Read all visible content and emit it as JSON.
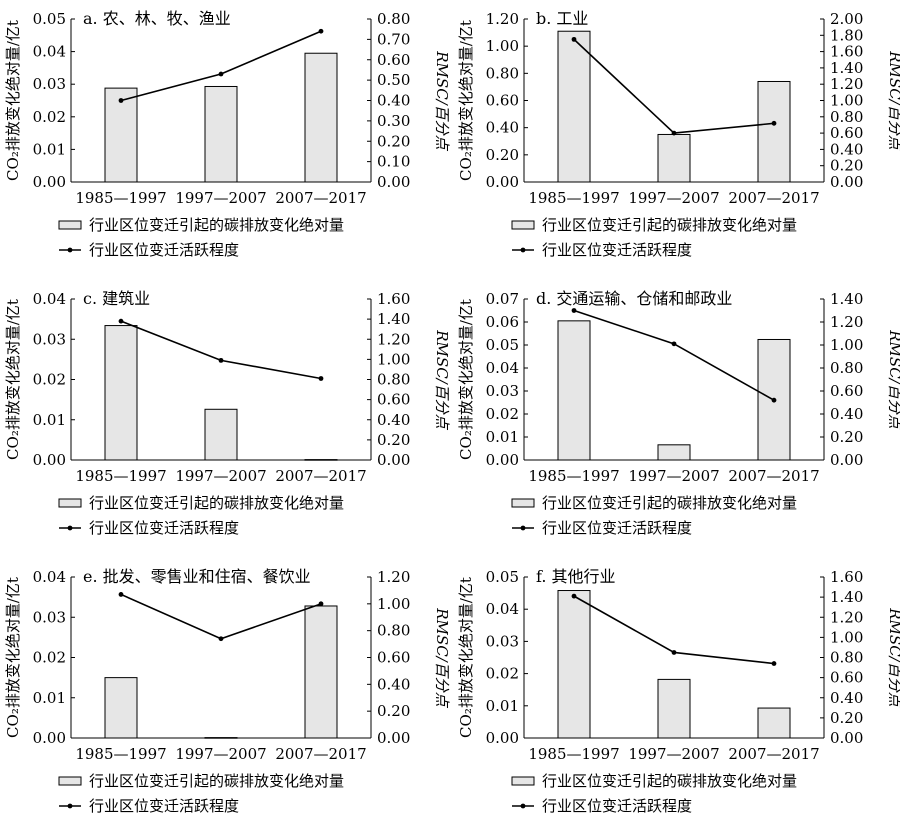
{
  "legend": {
    "bar_label": "行业区位变迁引起的碳排放变化绝对量",
    "line_label": "行业区位变迁活跃程度"
  },
  "axis_labels": {
    "left": "CO₂排放变化绝对量/亿t",
    "right": "RMSC/百分点"
  },
  "chart_data": [
    {
      "id": "a",
      "type": "bar",
      "title": "a. 农、林、牧、渔业",
      "categories": [
        "1985—1997",
        "1997—2007",
        "2007—2017"
      ],
      "ylabel": "CO₂排放变化绝对量/亿t",
      "y2label": "RMSC/百分点",
      "ylim": [
        0,
        0.05
      ],
      "yticks": [
        "0.00",
        "0.01",
        "0.02",
        "0.03",
        "0.04",
        "0.05"
      ],
      "y2lim": [
        0,
        0.8
      ],
      "y2ticks": [
        "0.00",
        "0.10",
        "0.20",
        "0.30",
        "0.40",
        "0.50",
        "0.60",
        "0.70",
        "0.80"
      ],
      "series": [
        {
          "name": "行业区位变迁引起的碳排放变化绝对量",
          "kind": "bar",
          "axis": "left",
          "values": [
            0.0288,
            0.0293,
            0.0395
          ]
        },
        {
          "name": "行业区位变迁活跃程度",
          "kind": "line",
          "axis": "right",
          "values": [
            0.4,
            0.53,
            0.74
          ]
        }
      ]
    },
    {
      "id": "b",
      "type": "bar",
      "title": "b. 工业",
      "categories": [
        "1985—1997",
        "1997—2007",
        "2007—2017"
      ],
      "ylabel": "CO₂排放变化绝对量/亿t",
      "y2label": "RMSC/百分点",
      "ylim": [
        0,
        1.2
      ],
      "yticks": [
        "0.00",
        "0.20",
        "0.40",
        "0.60",
        "0.80",
        "1.00",
        "1.20"
      ],
      "y2lim": [
        0,
        2.0
      ],
      "y2ticks": [
        "0.00",
        "0.20",
        "0.40",
        "0.60",
        "0.80",
        "1.00",
        "1.20",
        "1.40",
        "1.60",
        "1.80",
        "2.00"
      ],
      "series": [
        {
          "name": "行业区位变迁引起的碳排放变化绝对量",
          "kind": "bar",
          "axis": "left",
          "values": [
            1.11,
            0.35,
            0.74
          ]
        },
        {
          "name": "行业区位变迁活跃程度",
          "kind": "line",
          "axis": "right",
          "values": [
            1.75,
            0.6,
            0.72
          ]
        }
      ]
    },
    {
      "id": "c",
      "type": "bar",
      "title": "c. 建筑业",
      "categories": [
        "1985—1997",
        "1997—2007",
        "2007—2017"
      ],
      "ylabel": "CO₂排放变化绝对量/亿t",
      "y2label": "RMSC/百分点",
      "ylim": [
        0,
        0.04
      ],
      "yticks": [
        "0.00",
        "0.01",
        "0.02",
        "0.03",
        "0.04"
      ],
      "y2lim": [
        0,
        1.6
      ],
      "y2ticks": [
        "0.00",
        "0.20",
        "0.40",
        "0.60",
        "0.80",
        "1.00",
        "1.20",
        "1.40",
        "1.60"
      ],
      "series": [
        {
          "name": "行业区位变迁引起的碳排放变化绝对量",
          "kind": "bar",
          "axis": "left",
          "values": [
            0.0334,
            0.0126,
            0.0001
          ]
        },
        {
          "name": "行业区位变迁活跃程度",
          "kind": "line",
          "axis": "right",
          "values": [
            1.38,
            0.99,
            0.81
          ]
        }
      ]
    },
    {
      "id": "d",
      "type": "bar",
      "title": "d. 交通运输、仓储和邮政业",
      "categories": [
        "1985—1997",
        "1997—2007",
        "2007—2017"
      ],
      "ylabel": "CO₂排放变化绝对量/亿t",
      "y2label": "RMSC/百分点",
      "ylim": [
        0,
        0.07
      ],
      "yticks": [
        "0.00",
        "0.01",
        "0.02",
        "0.03",
        "0.04",
        "0.05",
        "0.06",
        "0.07"
      ],
      "y2lim": [
        0,
        1.4
      ],
      "y2ticks": [
        "0.00",
        "0.20",
        "0.40",
        "0.60",
        "0.80",
        "1.00",
        "1.20",
        "1.40"
      ],
      "series": [
        {
          "name": "行业区位变迁引起的碳排放变化绝对量",
          "kind": "bar",
          "axis": "left",
          "values": [
            0.0605,
            0.0066,
            0.0524
          ]
        },
        {
          "name": "行业区位变迁活跃程度",
          "kind": "line",
          "axis": "right",
          "values": [
            1.3,
            1.01,
            0.52
          ]
        }
      ]
    },
    {
      "id": "e",
      "type": "bar",
      "title": "e. 批发、零售业和住宿、餐饮业",
      "categories": [
        "1985—1997",
        "1997—2007",
        "2007—2017"
      ],
      "ylabel": "CO₂排放变化绝对量/亿t",
      "y2label": "RMSC/百分点",
      "ylim": [
        0,
        0.04
      ],
      "yticks": [
        "0.00",
        "0.01",
        "0.02",
        "0.03",
        "0.04"
      ],
      "y2lim": [
        0,
        1.2
      ],
      "y2ticks": [
        "0.00",
        "0.20",
        "0.40",
        "0.60",
        "0.80",
        "1.00",
        "1.20"
      ],
      "series": [
        {
          "name": "行业区位变迁引起的碳排放变化绝对量",
          "kind": "bar",
          "axis": "left",
          "values": [
            0.015,
            0.0001,
            0.0328
          ]
        },
        {
          "name": "行业区位变迁活跃程度",
          "kind": "line",
          "axis": "right",
          "values": [
            1.07,
            0.74,
            1.0
          ]
        }
      ]
    },
    {
      "id": "f",
      "type": "bar",
      "title": "f. 其他行业",
      "categories": [
        "1985—1997",
        "1997—2007",
        "2007—2017"
      ],
      "ylabel": "CO₂排放变化绝对量/亿t",
      "y2label": "RMSC/百分点",
      "ylim": [
        0,
        0.05
      ],
      "yticks": [
        "0.00",
        "0.01",
        "0.02",
        "0.03",
        "0.04",
        "0.05"
      ],
      "y2lim": [
        0,
        1.6
      ],
      "y2ticks": [
        "0.00",
        "0.20",
        "0.40",
        "0.60",
        "0.80",
        "1.00",
        "1.20",
        "1.40",
        "1.60"
      ],
      "series": [
        {
          "name": "行业区位变迁引起的碳排放变化绝对量",
          "kind": "bar",
          "axis": "left",
          "values": [
            0.0458,
            0.0182,
            0.0093
          ]
        },
        {
          "name": "行业区位变迁活跃程度",
          "kind": "line",
          "axis": "right",
          "values": [
            1.41,
            0.85,
            0.74
          ]
        }
      ]
    }
  ],
  "colors": {
    "bar_fill": "#e6e6e6",
    "bar_stroke": "#000000",
    "line": "#000000",
    "axis": "#000000"
  }
}
